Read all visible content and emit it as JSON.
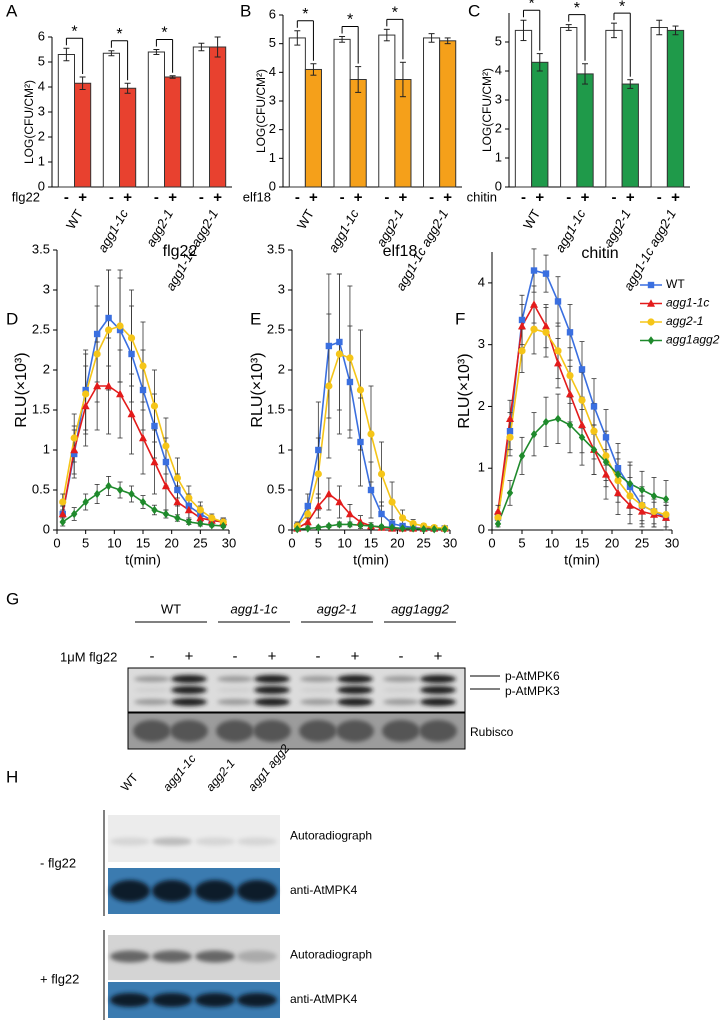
{
  "chart_data": [
    {
      "type": "bar",
      "panel": "A",
      "ylabel": "LOG(CFU/CM²)",
      "treatment": "flg22",
      "categories": [
        "WT",
        "agg1-1c",
        "agg2-1",
        "agg1-1c agg2-1"
      ],
      "series": [
        {
          "name": "-",
          "color": "#ffffff",
          "values": [
            5.3,
            5.35,
            5.4,
            5.6
          ],
          "errors": [
            0.25,
            0.1,
            0.1,
            0.15
          ]
        },
        {
          "name": "+",
          "color": "#e8412f",
          "values": [
            4.15,
            3.95,
            4.4,
            5.6
          ],
          "errors": [
            0.25,
            0.2,
            0.05,
            0.4
          ]
        }
      ],
      "annotations": [
        {
          "text": "*",
          "category": 0
        },
        {
          "text": "*",
          "category": 1
        },
        {
          "text": "*",
          "category": 2
        }
      ],
      "ylim": [
        0,
        6
      ],
      "yticks": [
        0,
        1,
        2,
        3,
        4,
        5,
        6
      ]
    },
    {
      "type": "bar",
      "panel": "B",
      "ylabel": "LOG(CFU/CM²)",
      "treatment": "elf18",
      "categories": [
        "WT",
        "agg1-1c",
        "agg2-1",
        "agg1-1c agg2-1"
      ],
      "series": [
        {
          "name": "-",
          "color": "#ffffff",
          "values": [
            5.2,
            5.15,
            5.3,
            5.2
          ],
          "errors": [
            0.25,
            0.1,
            0.2,
            0.15
          ]
        },
        {
          "name": "+",
          "color": "#f5a01a",
          "values": [
            4.1,
            3.75,
            3.75,
            5.1
          ],
          "errors": [
            0.2,
            0.45,
            0.6,
            0.1
          ]
        }
      ],
      "annotations": [
        {
          "text": "*",
          "category": 0
        },
        {
          "text": "*",
          "category": 1
        },
        {
          "text": "*",
          "category": 2
        }
      ],
      "ylim": [
        0,
        6
      ],
      "yticks": [
        0,
        1,
        2,
        3,
        4,
        5,
        6
      ]
    },
    {
      "type": "bar",
      "panel": "C",
      "ylabel": "LOG(CFU/CM²)",
      "treatment": "chitin",
      "categories": [
        "WT",
        "agg1-1c",
        "agg2-1",
        "agg1-1c agg2-1"
      ],
      "series": [
        {
          "name": "-",
          "color": "#ffffff",
          "values": [
            5.4,
            5.5,
            5.4,
            5.5
          ],
          "errors": [
            0.35,
            0.1,
            0.25,
            0.25
          ]
        },
        {
          "name": "+",
          "color": "#1f9a4a",
          "values": [
            4.3,
            3.9,
            3.55,
            5.4
          ],
          "errors": [
            0.3,
            0.35,
            0.15,
            0.15
          ]
        }
      ],
      "annotations": [
        {
          "text": "*",
          "category": 0
        },
        {
          "text": "*",
          "category": 1
        },
        {
          "text": "*",
          "category": 2
        }
      ],
      "ylim": [
        0,
        6
      ],
      "yticks": [
        0,
        1,
        2,
        3,
        4,
        5
      ]
    },
    {
      "type": "line",
      "panel": "D",
      "title": "flg22",
      "ylabel": "RLU(×10³)",
      "xlabel": "t(min)",
      "x": [
        1,
        3,
        5,
        7,
        9,
        11,
        13,
        15,
        17,
        19,
        21,
        23,
        25,
        27,
        29
      ],
      "series": [
        {
          "name": "WT",
          "color": "#3a6fe0",
          "marker": "square",
          "values": [
            0.2,
            0.95,
            1.75,
            2.45,
            2.65,
            2.5,
            2.2,
            1.75,
            1.3,
            0.85,
            0.5,
            0.3,
            0.2,
            0.12,
            0.1
          ],
          "errors": [
            0.1,
            0.3,
            0.5,
            0.6,
            0.6,
            0.65,
            0.6,
            0.5,
            0.4,
            0.3,
            0.2,
            0.15,
            0.1,
            0.05,
            0.05
          ]
        },
        {
          "name": "agg1-1c",
          "color": "#e31b1b",
          "marker": "triangle",
          "values": [
            0.2,
            1.0,
            1.55,
            1.8,
            1.8,
            1.7,
            1.45,
            1.15,
            0.85,
            0.55,
            0.35,
            0.25,
            0.15,
            0.12,
            0.1
          ],
          "errors": [
            0.1,
            0.3,
            0.5,
            0.55,
            0.6,
            0.55,
            0.5,
            0.45,
            0.4,
            0.3,
            0.2,
            0.12,
            0.08,
            0.05,
            0.05
          ]
        },
        {
          "name": "agg2-1",
          "color": "#f5c518",
          "marker": "circle",
          "values": [
            0.35,
            1.15,
            1.7,
            2.2,
            2.5,
            2.55,
            2.4,
            2.05,
            1.55,
            1.05,
            0.65,
            0.4,
            0.25,
            0.15,
            0.1
          ],
          "errors": [
            0.1,
            0.3,
            0.5,
            0.6,
            0.75,
            0.7,
            0.6,
            0.55,
            0.45,
            0.35,
            0.25,
            0.15,
            0.1,
            0.05,
            0.05
          ]
        },
        {
          "name": "agg1agg2",
          "color": "#1f8a2c",
          "marker": "diamond",
          "values": [
            0.1,
            0.2,
            0.35,
            0.45,
            0.55,
            0.5,
            0.45,
            0.35,
            0.25,
            0.2,
            0.15,
            0.1,
            0.08,
            0.06,
            0.05
          ],
          "errors": [
            0.05,
            0.08,
            0.1,
            0.12,
            0.12,
            0.1,
            0.1,
            0.08,
            0.06,
            0.05,
            0.04,
            0.03,
            0.03,
            0.02,
            0.02
          ]
        }
      ],
      "xlim": [
        0,
        30
      ],
      "xticks": [
        0,
        5,
        10,
        15,
        20,
        25,
        30
      ],
      "ylim": [
        0,
        3.5
      ],
      "yticks": [
        0,
        0.5,
        1,
        1.5,
        2,
        2.5,
        3,
        3.5
      ]
    },
    {
      "type": "line",
      "panel": "E",
      "title": "elf18",
      "ylabel": "RLU(×10³)",
      "xlabel": "t(min)",
      "x": [
        1,
        3,
        5,
        7,
        9,
        11,
        13,
        15,
        17,
        19,
        21,
        23,
        25,
        27,
        29
      ],
      "series": [
        {
          "name": "WT",
          "color": "#3a6fe0",
          "marker": "square",
          "values": [
            0.05,
            0.3,
            1.0,
            2.3,
            2.35,
            1.85,
            1.1,
            0.5,
            0.2,
            0.08,
            0.05,
            0.03,
            0.02,
            0.02,
            0.02
          ],
          "errors": [
            0.05,
            0.15,
            0.6,
            0.9,
            0.85,
            0.7,
            0.55,
            0.35,
            0.15,
            0.05,
            0.03,
            0.02,
            0.02,
            0.02,
            0.02
          ]
        },
        {
          "name": "agg1-1c",
          "color": "#e31b1b",
          "marker": "triangle",
          "values": [
            0.02,
            0.1,
            0.3,
            0.45,
            0.35,
            0.2,
            0.1,
            0.05,
            0.03,
            0.02,
            0.02,
            0.02,
            0.02,
            0.02,
            0.02
          ],
          "errors": [
            0.02,
            0.05,
            0.15,
            0.2,
            0.2,
            0.12,
            0.08,
            0.04,
            0.02,
            0.02,
            0.01,
            0.01,
            0.01,
            0.01,
            0.01
          ]
        },
        {
          "name": "agg2-1",
          "color": "#f5c518",
          "marker": "circle",
          "values": [
            0.05,
            0.2,
            0.7,
            1.8,
            2.2,
            2.15,
            1.75,
            1.2,
            0.7,
            0.35,
            0.15,
            0.08,
            0.05,
            0.03,
            0.02
          ],
          "errors": [
            0.05,
            0.1,
            0.45,
            0.9,
            1.0,
            0.9,
            0.75,
            0.6,
            0.4,
            0.25,
            0.1,
            0.05,
            0.03,
            0.02,
            0.02
          ]
        },
        {
          "name": "agg1agg2",
          "color": "#1f8a2c",
          "marker": "diamond",
          "values": [
            0.01,
            0.02,
            0.03,
            0.05,
            0.07,
            0.07,
            0.06,
            0.05,
            0.04,
            0.03,
            0.02,
            0.02,
            0.01,
            0.01,
            0.01
          ],
          "errors": [
            0.01,
            0.01,
            0.02,
            0.02,
            0.03,
            0.03,
            0.02,
            0.02,
            0.02,
            0.01,
            0.01,
            0.01,
            0.01,
            0.01,
            0.01
          ]
        }
      ],
      "xlim": [
        0,
        30
      ],
      "xticks": [
        0,
        5,
        10,
        15,
        20,
        25,
        30
      ],
      "ylim": [
        0,
        3.5
      ],
      "yticks": [
        0,
        0.5,
        1,
        1.5,
        2,
        2.5,
        3,
        3.5
      ]
    },
    {
      "type": "line",
      "panel": "F",
      "title": "chitin",
      "ylabel": "RLU(×10³)",
      "xlabel": "t(min)",
      "legend": "upper right",
      "x": [
        1,
        3,
        5,
        7,
        9,
        11,
        13,
        15,
        17,
        19,
        21,
        23,
        25,
        27,
        29
      ],
      "series": [
        {
          "name": "WT",
          "color": "#3a6fe0",
          "marker": "square",
          "values": [
            0.2,
            1.6,
            3.4,
            4.2,
            4.15,
            3.7,
            3.2,
            2.6,
            2.0,
            1.5,
            1.0,
            0.7,
            0.4,
            0.3,
            0.2
          ],
          "errors": [
            0.1,
            0.3,
            0.4,
            0.35,
            0.3,
            0.4,
            0.45,
            0.45,
            0.45,
            0.45,
            0.4,
            0.35,
            0.3,
            0.25,
            0.2
          ]
        },
        {
          "name": "agg1-1c",
          "color": "#e31b1b",
          "marker": "triangle",
          "values": [
            0.3,
            1.8,
            3.3,
            3.65,
            3.3,
            2.7,
            2.2,
            1.7,
            1.3,
            0.9,
            0.6,
            0.4,
            0.3,
            0.25,
            0.2
          ],
          "errors": [
            0.1,
            0.3,
            0.35,
            0.3,
            0.35,
            0.4,
            0.45,
            0.45,
            0.4,
            0.4,
            0.35,
            0.3,
            0.25,
            0.2,
            0.2
          ]
        },
        {
          "name": "agg2-1",
          "color": "#f5c518",
          "marker": "circle",
          "values": [
            0.2,
            1.5,
            2.9,
            3.25,
            3.2,
            2.9,
            2.5,
            2.1,
            1.6,
            1.2,
            0.8,
            0.55,
            0.4,
            0.3,
            0.25
          ],
          "errors": [
            0.1,
            0.3,
            0.35,
            0.4,
            0.4,
            0.45,
            0.45,
            0.45,
            0.45,
            0.4,
            0.35,
            0.3,
            0.25,
            0.2,
            0.2
          ]
        },
        {
          "name": "agg1agg2",
          "color": "#1f8a2c",
          "marker": "diamond",
          "values": [
            0.1,
            0.6,
            1.2,
            1.55,
            1.75,
            1.8,
            1.7,
            1.5,
            1.3,
            1.1,
            0.9,
            0.75,
            0.65,
            0.55,
            0.5
          ],
          "errors": [
            0.05,
            0.2,
            0.3,
            0.35,
            0.4,
            0.4,
            0.45,
            0.45,
            0.4,
            0.4,
            0.35,
            0.35,
            0.3,
            0.3,
            0.3
          ]
        }
      ],
      "xlim": [
        0,
        30
      ],
      "xticks": [
        0,
        5,
        10,
        15,
        20,
        25,
        30
      ],
      "ylim": [
        0,
        4.5
      ],
      "yticks": [
        0,
        1,
        2,
        3,
        4
      ]
    }
  ],
  "blot_g": {
    "panel": "G",
    "groups": [
      "WT",
      "agg1-1c",
      "agg2-1",
      "agg1agg2"
    ],
    "treatment": "1μM flg22",
    "lanes": [
      "-",
      "+",
      "-",
      "+",
      "-",
      "+",
      "-",
      "+"
    ],
    "bands": [
      "p-AtMPK6",
      "p-AtMPK3"
    ],
    "loading": "Rubisco"
  },
  "blot_h": {
    "panel": "H",
    "columns": [
      "WT",
      "agg1-1c",
      "agg2-1",
      "agg1 agg2"
    ],
    "rows": [
      {
        "treatment": "- flg22",
        "blots": [
          "Autoradiograph",
          "anti-AtMPK4"
        ]
      },
      {
        "treatment": "+ flg22",
        "blots": [
          "Autoradiograph",
          "anti-AtMPK4"
        ]
      }
    ]
  }
}
